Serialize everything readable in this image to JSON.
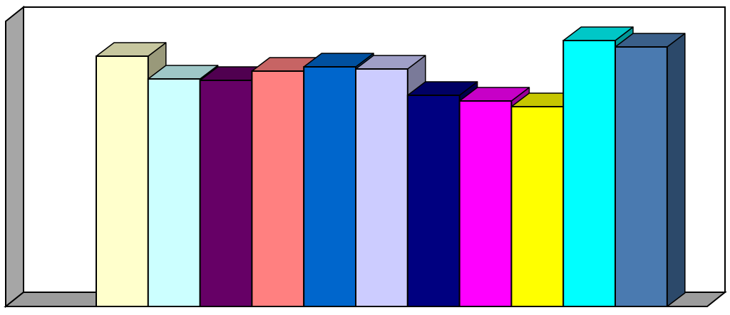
{
  "chart_data": {
    "type": "bar3d",
    "values": [
      352,
      320,
      318,
      331,
      337,
      334,
      297,
      289,
      281,
      374,
      365
    ],
    "colors": [
      "#ffffcc",
      "#ccffff",
      "#660066",
      "#ff8080",
      "#0066cc",
      "#ccccff",
      "#000080",
      "#ff00ff",
      "#ffff00",
      "#00ffff",
      "#4a7ab0"
    ],
    "ylim": [
      0,
      420
    ]
  }
}
